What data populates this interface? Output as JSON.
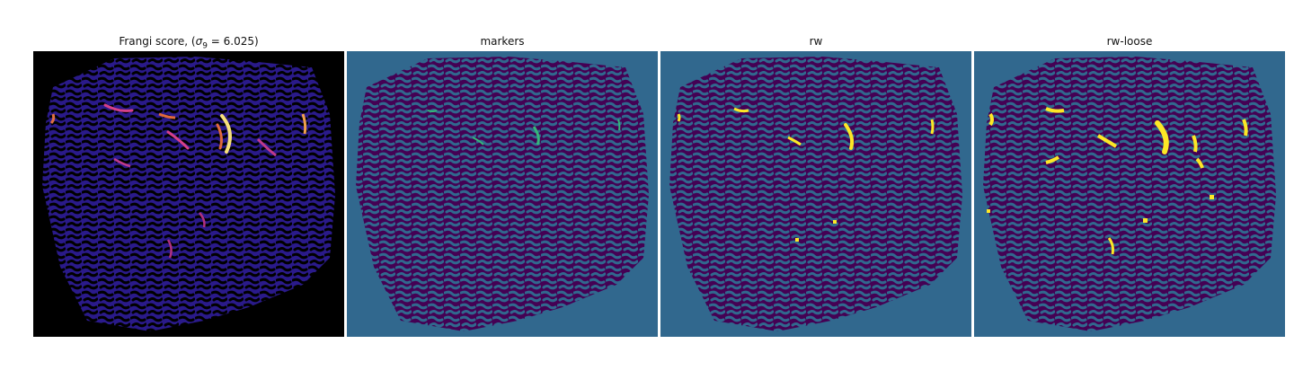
{
  "panels": [
    {
      "title_prefix": "Frangi score, (",
      "title_sigma": "σ",
      "title_sub": "9",
      "title_suffix": " = 6.025)"
    },
    {
      "title": "markers"
    },
    {
      "title": "rw"
    },
    {
      "title": "rw-loose"
    }
  ],
  "colors": {
    "frangi_background": "#000000",
    "frangi_tissue": "#2a1a8a",
    "frangi_hot": "#f0c850",
    "label_background": "#31688e",
    "label_tissue": "#440154",
    "label_marker": "#35b779",
    "label_vessel": "#fde725"
  }
}
